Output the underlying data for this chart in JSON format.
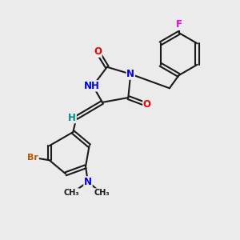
{
  "bg_color": "#ebebeb",
  "bond_color": "#1a1a1a",
  "bond_width": 1.5,
  "atom_colors": {
    "N": "#0000ee",
    "O": "#ee0000",
    "F": "#ee00ee",
    "Br": "#bb5500",
    "H": "#008888",
    "C": "#1a1a1a"
  },
  "font_size": 8.5,
  "xlim": [
    0,
    10
  ],
  "ylim": [
    0,
    10
  ]
}
